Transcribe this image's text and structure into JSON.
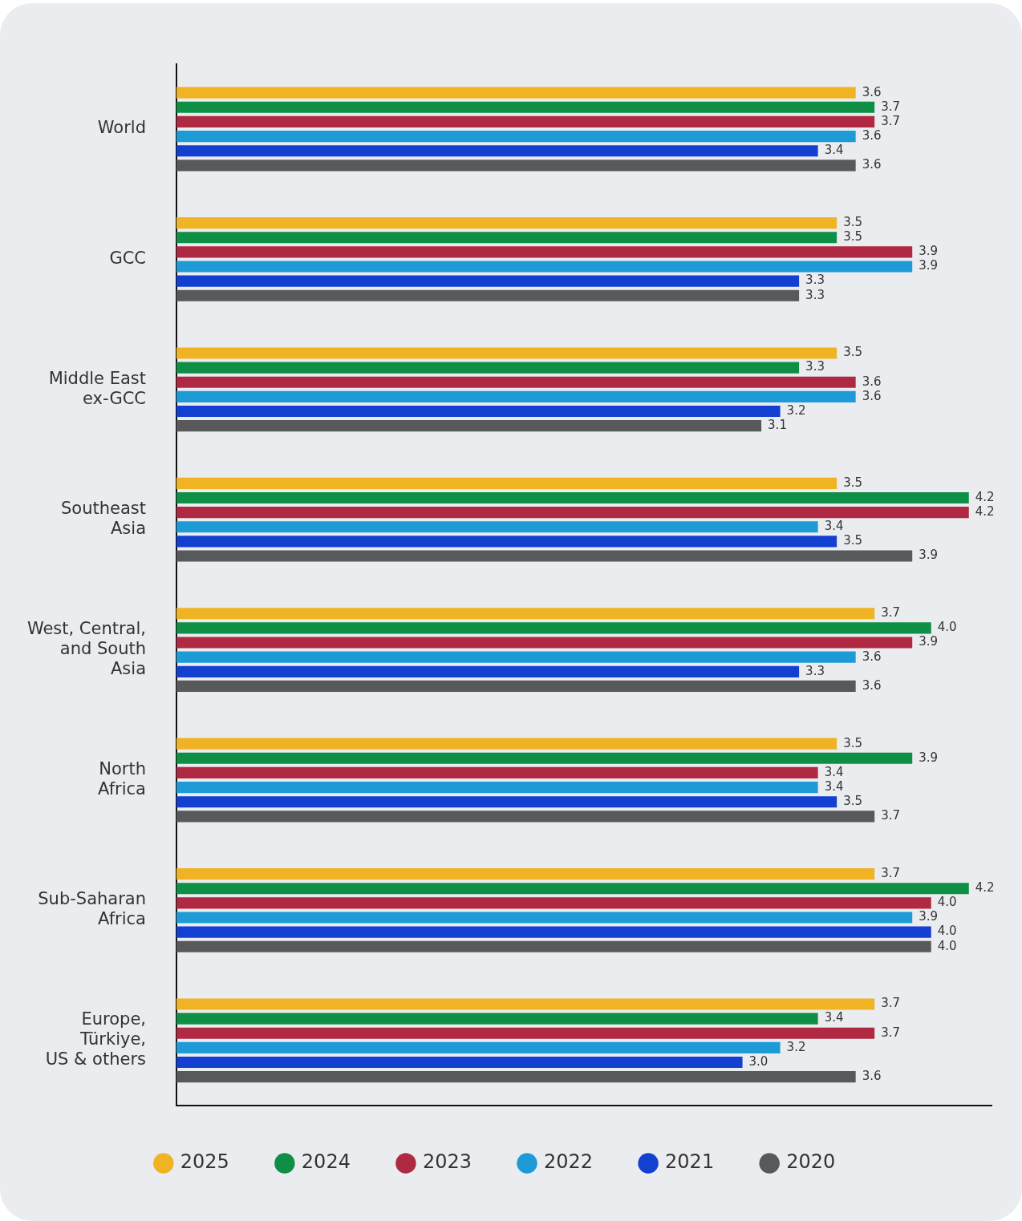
{
  "chart_data": {
    "type": "bar",
    "orientation": "horizontal",
    "categories": [
      "World",
      "GCC",
      "Middle East\nex-GCC",
      "Southeast\nAsia",
      "West, Central,\nand South\nAsia",
      "North\nAfrica",
      "Sub-Saharan\nAfrica",
      "Europe,\nTürkiye,\nUS & others"
    ],
    "series": [
      {
        "name": "2025",
        "color": "#f0b323",
        "values": [
          3.6,
          3.5,
          3.5,
          3.5,
          3.7,
          3.5,
          3.7,
          3.7
        ],
        "value_labels": [
          "3.6",
          "3.5",
          "3.5",
          "3.5",
          "3.7",
          "3.5",
          "3.7",
          "3.7"
        ]
      },
      {
        "name": "2024",
        "color": "#0e8f45",
        "values": [
          3.7,
          3.5,
          3.3,
          4.2,
          4.0,
          3.9,
          4.2,
          3.4
        ],
        "value_labels": [
          "3.7",
          "3.5",
          "3.3",
          "4.2",
          "4.0",
          "3.9",
          "4.2",
          "3.4"
        ]
      },
      {
        "name": "2023",
        "color": "#b02942",
        "values": [
          3.7,
          3.9,
          3.6,
          4.2,
          3.9,
          3.4,
          4.0,
          3.7
        ],
        "value_labels": [
          "3.7",
          "3.9",
          "3.6",
          "4.2",
          "3.9",
          "3.4",
          "4.0",
          "3.7"
        ]
      },
      {
        "name": "2022",
        "color": "#1e9bd7",
        "values": [
          3.6,
          3.9,
          3.6,
          3.4,
          3.6,
          3.4,
          3.9,
          3.2
        ],
        "value_labels": [
          "3.6",
          "3.9",
          "3.6",
          "3.4",
          "3.6",
          "3.4",
          "3.9",
          "3.2"
        ]
      },
      {
        "name": "2021",
        "color": "#1340d0",
        "values": [
          3.4,
          3.3,
          3.2,
          3.5,
          3.3,
          3.5,
          4.0,
          3.0
        ],
        "value_labels": [
          "3.4",
          "3.3",
          "3.2",
          "3.5",
          "3.3",
          "3.5",
          "4.0",
          "3.0"
        ]
      },
      {
        "name": "2020",
        "color": "#58595b",
        "values": [
          3.6,
          3.3,
          3.1,
          3.9,
          3.6,
          3.7,
          4.0,
          3.6
        ],
        "value_labels": [
          "3.6",
          "3.3",
          "3.1",
          "3.9",
          "3.6",
          "3.7",
          "4.0",
          "3.6"
        ]
      }
    ],
    "xlim": [
      0,
      4.32
    ],
    "tick_labels": "y",
    "grid": false,
    "legend": "bottom"
  }
}
